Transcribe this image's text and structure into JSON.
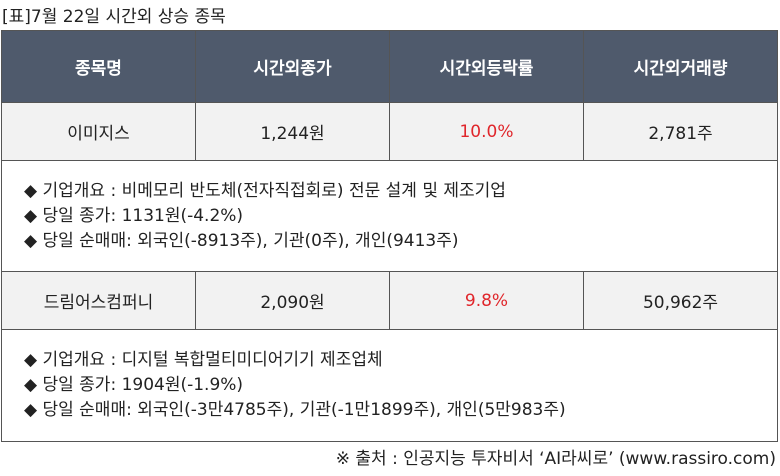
{
  "header": {
    "title": "[표]7월 22일 시간외 상승 종목"
  },
  "table": {
    "columns": [
      "종목명",
      "시간외종가",
      "시간외등락률",
      "시간외거래량"
    ],
    "rows": [
      {
        "cells": [
          "이미지스",
          "1,244원",
          "10.0%",
          "2,781주"
        ],
        "details": [
          "◆ 기업개요 : 비메모리 반도체(전자직접회로) 전문 설계 및 제조기업",
          "◆ 당일 종가: 1131원(-4.2%)",
          "◆ 당일 순매매: 외국인(-8913주), 기관(0주), 개인(9413주)"
        ]
      },
      {
        "cells": [
          "드림어스컴퍼니",
          "2,090원",
          "9.8%",
          "50,962주"
        ],
        "details": [
          "◆ 기업개요 : 디지털 복합멀티미디어기기 제조업체",
          "◆ 당일 종가: 1904원(-1.9%)",
          "◆ 당일 순매매: 외국인(-3만4785주), 기관(-1만1899주), 개인(5만983주)"
        ]
      }
    ]
  },
  "footer": {
    "source": "※ 출처 : 인공지능 투자비서 ‘AI라씨로’ (www.rassiro.com)"
  }
}
